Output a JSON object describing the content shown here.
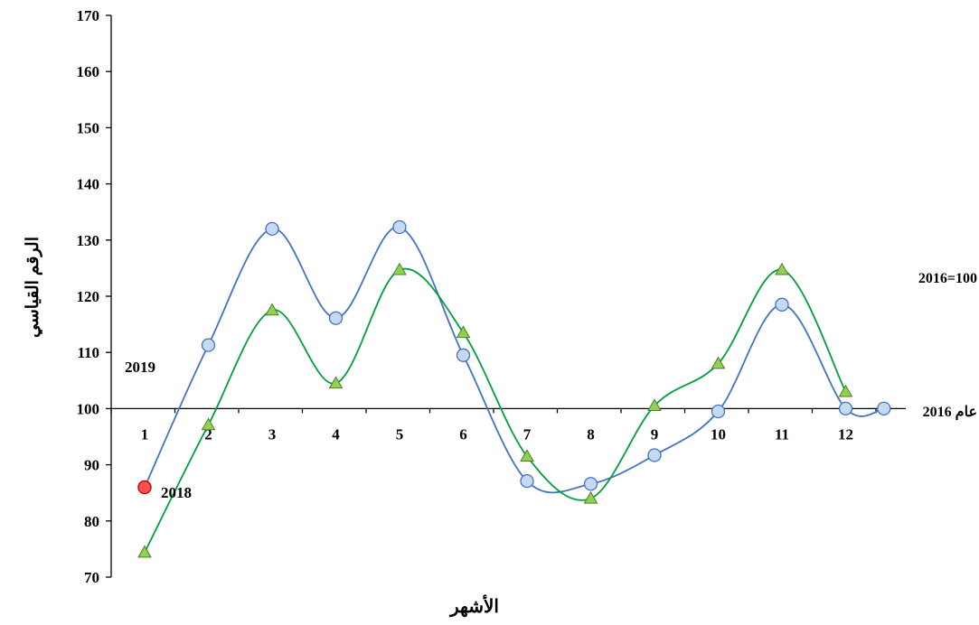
{
  "chart_data": {
    "type": "line",
    "title": "",
    "xlabel": "الأشهر",
    "ylabel": "الرقم القياسي",
    "ylim": [
      70,
      170
    ],
    "yticks": [
      70,
      80,
      90,
      100,
      110,
      120,
      130,
      140,
      150,
      160,
      170
    ],
    "baseline": 100,
    "categories": [
      "1",
      "2",
      "3",
      "4",
      "5",
      "6",
      "7",
      "8",
      "9",
      "10",
      "11",
      "12"
    ],
    "series": [
      {
        "name": "2018",
        "color": "#4472C4",
        "marker": "circle",
        "marker_fill": "#C5D9F1",
        "x": [
          1,
          2,
          3,
          4,
          5,
          6,
          7,
          8,
          9,
          10,
          11,
          12,
          12.6
        ],
        "values": [
          86.0,
          111.3,
          132.0,
          116.1,
          132.3,
          109.5,
          87.1,
          86.6,
          91.7,
          99.5,
          118.5,
          100.0,
          100.0
        ]
      },
      {
        "name": "2019",
        "color": "#00A03C",
        "marker": "triangle",
        "marker_fill": "#92D050",
        "x": [
          1,
          2,
          3,
          4,
          5,
          6,
          7,
          8,
          9,
          10,
          11,
          12
        ],
        "values": [
          74.4,
          97.1,
          117.5,
          104.5,
          124.7,
          113.5,
          91.5,
          84.0,
          100.5,
          108.0,
          124.7,
          103.0
        ]
      }
    ],
    "highlight_point": {
      "x": 1,
      "value": 86.0,
      "color": "#FF5050"
    },
    "annotations": {
      "label_2019": "2019",
      "label_2018": "2018",
      "base_note": "2016=100",
      "base_line_label": "عام 2016"
    }
  }
}
